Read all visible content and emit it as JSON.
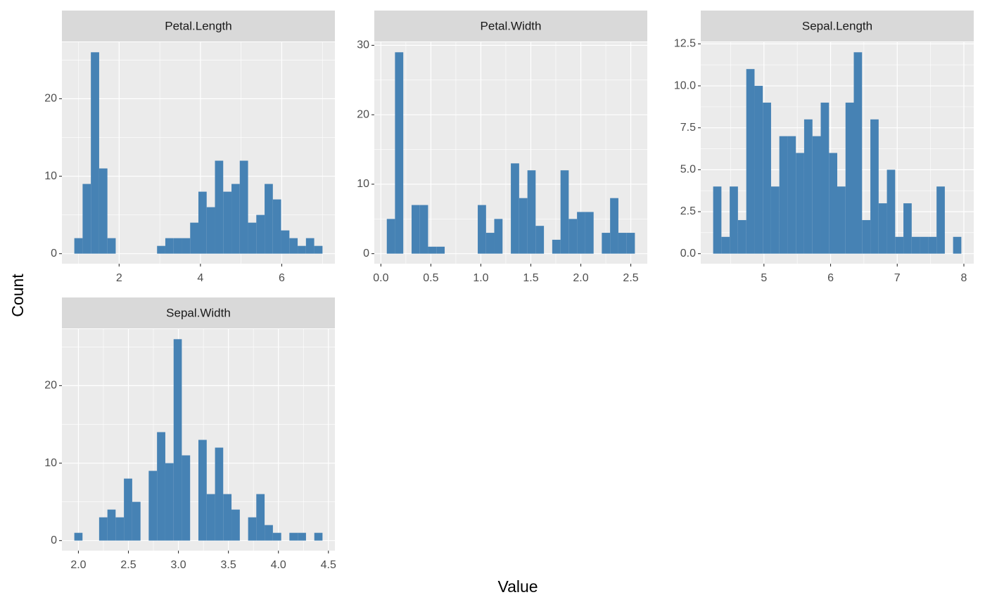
{
  "xlabel": "Value",
  "ylabel": "Count",
  "chart_data": [
    {
      "type": "histogram",
      "title": "Petal.Length",
      "color": "#4682b4",
      "grid": true,
      "bins": [
        0.898,
        1.102,
        1.305,
        1.509,
        1.712,
        1.916,
        2.119,
        2.322,
        2.526,
        2.729,
        2.933,
        3.136,
        3.34,
        3.543,
        3.747,
        3.95,
        4.153,
        4.357,
        4.56,
        4.764,
        4.967,
        5.171,
        5.374,
        5.578,
        5.781,
        5.984,
        6.188,
        6.391,
        6.595,
        6.798,
        7.002
      ],
      "values": [
        2,
        9,
        26,
        11,
        2,
        0,
        0,
        0,
        0,
        0,
        1,
        2,
        2,
        2,
        4,
        8,
        6,
        12,
        8,
        9,
        12,
        4,
        5,
        9,
        7,
        3,
        2,
        1,
        2,
        1
      ],
      "xlim": [
        0.593,
        7.307
      ],
      "ylim": [
        -1.3,
        27.3
      ],
      "xticks": [
        2,
        4,
        6
      ],
      "yticks": [
        0,
        10,
        20
      ]
    },
    {
      "type": "histogram",
      "title": "Petal.Width",
      "color": "#4682b4",
      "grid": true,
      "bins": [
        0.059,
        0.141,
        0.224,
        0.307,
        0.39,
        0.472,
        0.555,
        0.638,
        0.721,
        0.803,
        0.886,
        0.969,
        1.052,
        1.134,
        1.217,
        1.3,
        1.383,
        1.466,
        1.548,
        1.631,
        1.714,
        1.797,
        1.879,
        1.962,
        2.045,
        2.128,
        2.21,
        2.293,
        2.376,
        2.459,
        2.541
      ],
      "values": [
        5,
        29,
        0,
        7,
        7,
        1,
        1,
        0,
        0,
        0,
        0,
        7,
        3,
        5,
        0,
        13,
        8,
        12,
        4,
        0,
        2,
        12,
        5,
        6,
        6,
        0,
        3,
        8,
        3,
        3
      ],
      "xlim": [
        -0.066,
        2.665
      ],
      "ylim": [
        -1.45,
        30.45
      ],
      "xticks": [
        {
          "value": 0,
          "label": "0.0"
        },
        0.5,
        {
          "value": 1,
          "label": "1.0"
        },
        1.5,
        {
          "value": 2,
          "label": "2.0"
        },
        2.5
      ],
      "yticks": [
        0,
        10,
        20,
        30
      ]
    },
    {
      "type": "histogram",
      "title": "Sepal.Length",
      "color": "#4682b4",
      "grid": true,
      "bins": [
        4.238,
        4.362,
        4.486,
        4.61,
        4.735,
        4.859,
        4.983,
        5.107,
        5.231,
        5.355,
        5.479,
        5.603,
        5.728,
        5.852,
        5.976,
        6.1,
        6.224,
        6.348,
        6.472,
        6.597,
        6.721,
        6.845,
        6.969,
        7.093,
        7.217,
        7.341,
        7.466,
        7.59,
        7.714,
        7.838,
        7.962
      ],
      "values": [
        4,
        1,
        4,
        2,
        11,
        10,
        9,
        4,
        7,
        7,
        6,
        8,
        7,
        9,
        6,
        4,
        9,
        12,
        2,
        8,
        3,
        5,
        1,
        3,
        1,
        1,
        1,
        4,
        0,
        1
      ],
      "xlim": [
        4.052,
        8.148
      ],
      "ylim": [
        -0.6,
        12.6
      ],
      "xticks": [
        5,
        6,
        7,
        8
      ],
      "yticks": [
        {
          "value": 0,
          "label": "0.0"
        },
        2.5,
        {
          "value": 5,
          "label": "5.0"
        },
        7.5,
        {
          "value": 10,
          "label": "10.0"
        },
        12.5
      ]
    },
    {
      "type": "histogram",
      "title": "Sepal.Width",
      "color": "#4682b4",
      "grid": true,
      "bins": [
        1.959,
        2.041,
        2.124,
        2.207,
        2.29,
        2.372,
        2.455,
        2.538,
        2.621,
        2.703,
        2.786,
        2.869,
        2.952,
        3.034,
        3.117,
        3.2,
        3.283,
        3.366,
        3.448,
        3.531,
        3.614,
        3.697,
        3.779,
        3.862,
        3.945,
        4.028,
        4.11,
        4.193,
        4.276,
        4.359,
        4.441
      ],
      "values": [
        1,
        0,
        0,
        3,
        4,
        3,
        8,
        5,
        0,
        9,
        14,
        10,
        26,
        11,
        0,
        13,
        6,
        12,
        6,
        4,
        0,
        3,
        6,
        2,
        1,
        0,
        1,
        1,
        0,
        1
      ],
      "xlim": [
        1.835,
        4.565
      ],
      "ylim": [
        -1.3,
        27.3
      ],
      "xticks": [
        {
          "value": 2,
          "label": "2.0"
        },
        2.5,
        {
          "value": 3,
          "label": "3.0"
        },
        3.5,
        {
          "value": 4,
          "label": "4.0"
        },
        4.5
      ],
      "yticks": [
        0,
        10,
        20
      ]
    }
  ]
}
